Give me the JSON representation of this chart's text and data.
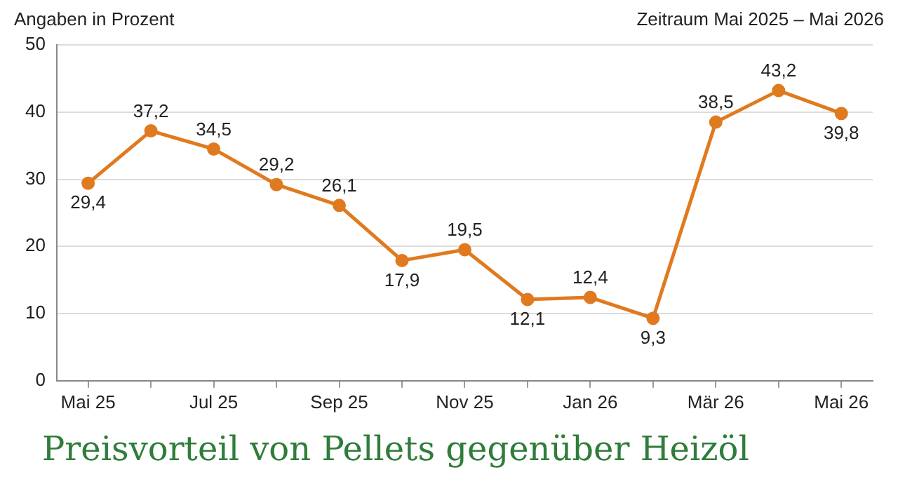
{
  "chart_data": {
    "type": "line",
    "title": "Preisvorteil von Pellets gegenüber Heizöl",
    "ylabel": "Angaben in Prozent",
    "subtitle": "Zeitraum Mai 2025 – Mai 2026",
    "categories": [
      "Mai 25",
      null,
      "Jul 25",
      null,
      "Sep 25",
      null,
      "Nov 25",
      null,
      "Jan 26",
      null,
      "Mär 26",
      null,
      "Mai 26"
    ],
    "series": [
      {
        "color": "#e07a1f",
        "values": [
          29.4,
          37.2,
          34.5,
          29.2,
          26.1,
          17.9,
          19.5,
          12.1,
          12.4,
          9.3,
          38.5,
          43.2,
          39.8
        ],
        "value_labels": [
          "29,4",
          "37,2",
          "34,5",
          "29,2",
          "26,1",
          "17,9",
          "19,5",
          "12,1",
          "12,4",
          "9,3",
          "38,5",
          "43,2",
          "39,8"
        ]
      }
    ],
    "ylim": [
      0,
      50
    ],
    "yticks": [
      0,
      10,
      20,
      30,
      40,
      50
    ],
    "grid": "y",
    "legend": false,
    "marker": "circle",
    "line_style": "solid"
  }
}
